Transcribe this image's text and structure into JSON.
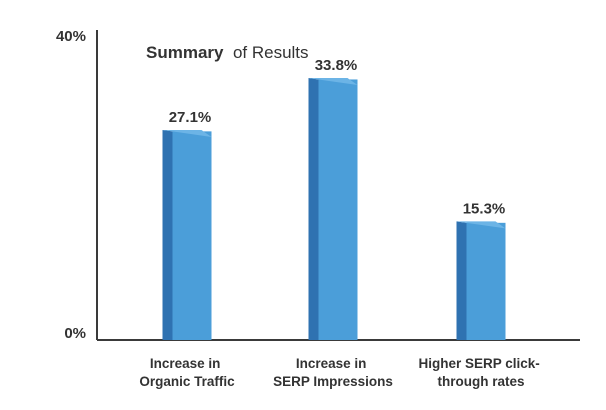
{
  "chart_data": {
    "type": "bar",
    "title_bold": "Summary",
    "title_rest": "of Results",
    "categories": [
      [
        "Increase in",
        "Organic Traffic"
      ],
      [
        "Increase in",
        "SERP Impressions"
      ],
      [
        "Higher SERP click-",
        "through rates"
      ]
    ],
    "values": [
      27.1,
      33.8,
      15.3
    ],
    "data_labels": [
      "27.1%",
      "33.8%",
      "15.3%"
    ],
    "ylim": [
      0,
      40
    ],
    "y_ticks": [
      "0%",
      "40%"
    ],
    "grid": false,
    "colors": {
      "bar_front": "#4b9ed9",
      "bar_side": "#2f72b1",
      "bar_top": "#6cb4e6",
      "axis": "#3a3a3a",
      "text": "#333333"
    }
  }
}
